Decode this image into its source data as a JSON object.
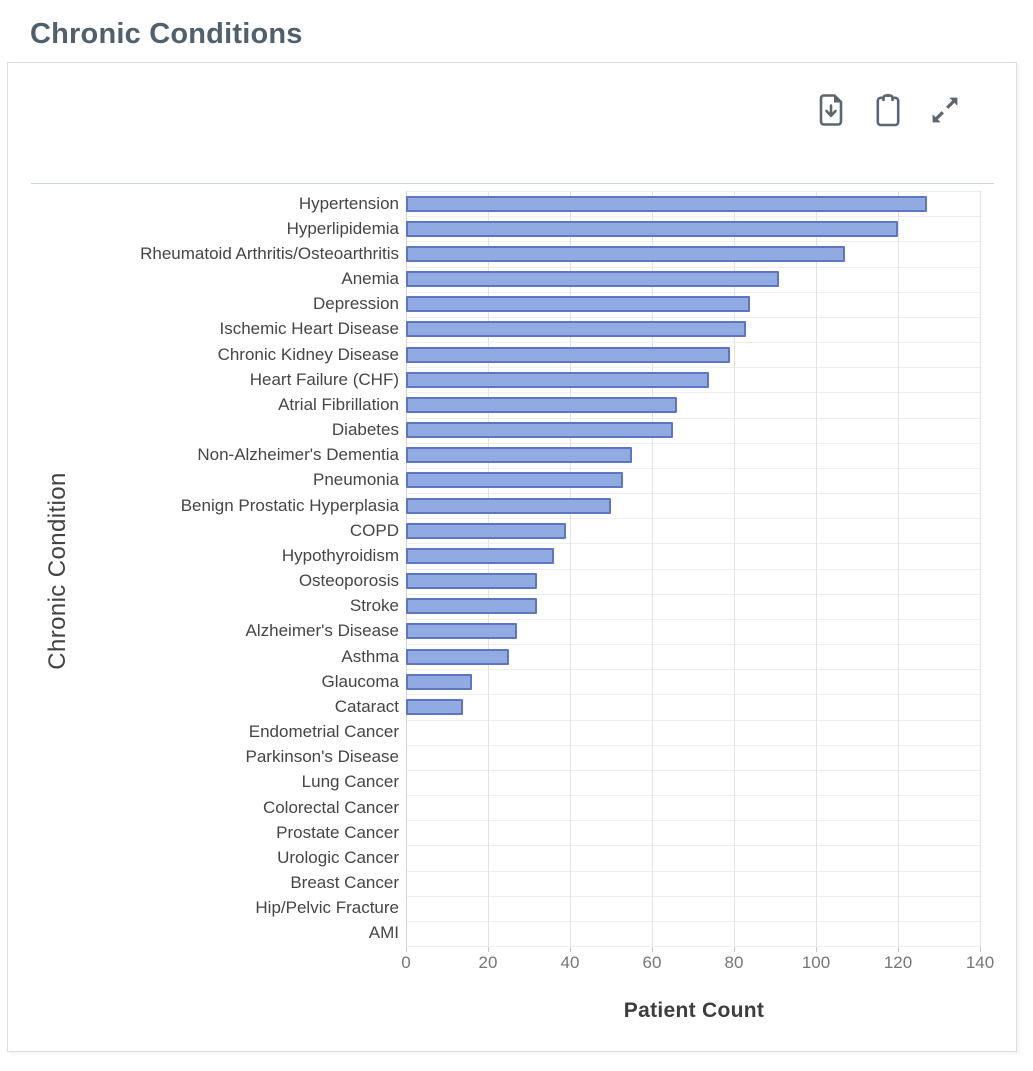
{
  "page_title": "Chronic Conditions",
  "toolbar": {
    "icons": [
      {
        "name": "download-file-icon"
      },
      {
        "name": "clipboard-icon"
      },
      {
        "name": "expand-icon"
      }
    ]
  },
  "colors": {
    "title": "#4f616e",
    "bar_fill": "#92aae2",
    "bar_border": "#5c76c2",
    "icon": "#5a6771"
  },
  "chart_data": {
    "type": "bar",
    "orientation": "horizontal",
    "title": "Chronic Conditions",
    "xlabel": "Patient Count",
    "ylabel": "Chronic Condition",
    "xlim": [
      0,
      140
    ],
    "xticks": [
      0,
      20,
      40,
      60,
      80,
      100,
      120,
      140
    ],
    "grid": true,
    "categories": [
      "Hypertension",
      "Hyperlipidemia",
      "Rheumatoid Arthritis/Osteoarthritis",
      "Anemia",
      "Depression",
      "Ischemic Heart Disease",
      "Chronic Kidney Disease",
      "Heart Failure (CHF)",
      "Atrial Fibrillation",
      "Diabetes",
      "Non-Alzheimer's Dementia",
      "Pneumonia",
      "Benign Prostatic Hyperplasia",
      "COPD",
      "Hypothyroidism",
      "Osteoporosis",
      "Stroke",
      "Alzheimer's Disease",
      "Asthma",
      "Glaucoma",
      "Cataract",
      "Endometrial Cancer",
      "Parkinson's Disease",
      "Lung Cancer",
      "Colorectal Cancer",
      "Prostate Cancer",
      "Urologic Cancer",
      "Breast Cancer",
      "Hip/Pelvic Fracture",
      "AMI"
    ],
    "values": [
      127,
      120,
      107,
      91,
      84,
      83,
      79,
      74,
      66,
      65,
      55,
      53,
      50,
      39,
      36,
      32,
      32,
      27,
      25,
      16,
      14,
      0,
      0,
      0,
      0,
      0,
      0,
      0,
      0,
      0
    ]
  }
}
